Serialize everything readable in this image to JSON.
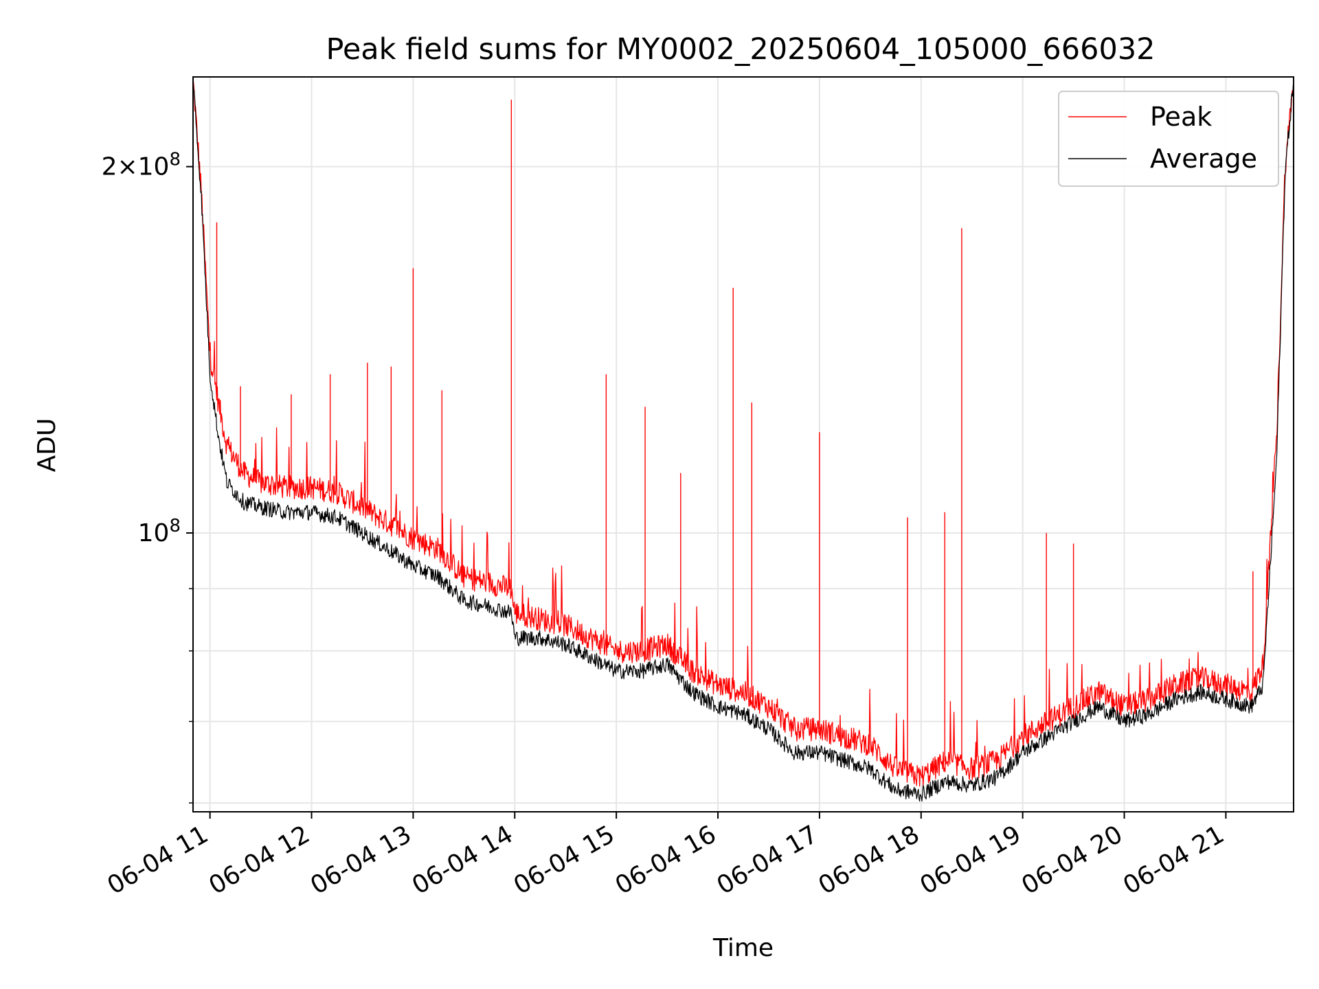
{
  "chart_data": {
    "type": "line",
    "title": "Peak field sums for MY0002_20250604_105000_666032",
    "xlabel": "Time",
    "ylabel": "ADU",
    "yscale": "log",
    "ylim": [
      59000000,
      237000000
    ],
    "xlim": [
      "2025-06-04 10:50",
      "2025-06-04 21:40"
    ],
    "x_ticks": [
      "06-04 11",
      "06-04 12",
      "06-04 13",
      "06-04 14",
      "06-04 15",
      "06-04 16",
      "06-04 17",
      "06-04 18",
      "06-04 19",
      "06-04 20",
      "06-04 21"
    ],
    "y_ticks": [
      {
        "value": 100000000,
        "label": "10^8"
      },
      {
        "value": 200000000,
        "label": "2×10^8"
      }
    ],
    "y_minor_ticks": [
      60000000,
      70000000,
      80000000,
      90000000
    ],
    "grid": true,
    "legend_position": "top-right",
    "series": [
      {
        "name": "Peak",
        "color": "#ff0000",
        "points": [
          [
            "2025-06-04 10:50",
            236000000
          ],
          [
            "2025-06-04 10:55",
            190000000
          ],
          [
            "2025-06-04 11:00",
            140000000
          ],
          [
            "2025-06-04 11:05",
            128000000
          ],
          [
            "2025-06-04 11:10",
            118000000
          ],
          [
            "2025-06-04 11:20",
            112000000
          ],
          [
            "2025-06-04 11:30",
            110000000
          ],
          [
            "2025-06-04 11:45",
            109000000
          ],
          [
            "2025-06-04 12:00",
            109000000
          ],
          [
            "2025-06-04 12:15",
            108000000
          ],
          [
            "2025-06-04 12:30",
            105000000
          ],
          [
            "2025-06-04 12:45",
            102000000
          ],
          [
            "2025-06-04 13:00",
            99000000
          ],
          [
            "2025-06-04 13:15",
            97000000
          ],
          [
            "2025-06-04 13:30",
            92000000
          ],
          [
            "2025-06-04 13:45",
            91000000
          ],
          [
            "2025-06-04 13:58",
            90000000
          ],
          [
            "2025-06-04 14:00",
            86000000
          ],
          [
            "2025-06-04 14:15",
            85000000
          ],
          [
            "2025-06-04 14:30",
            84000000
          ],
          [
            "2025-06-04 14:45",
            82000000
          ],
          [
            "2025-06-04 15:00",
            80000000
          ],
          [
            "2025-06-04 15:15",
            80000000
          ],
          [
            "2025-06-04 15:30",
            81000000
          ],
          [
            "2025-06-04 15:45",
            77000000
          ],
          [
            "2025-06-04 16:00",
            75000000
          ],
          [
            "2025-06-04 16:15",
            74000000
          ],
          [
            "2025-06-04 16:30",
            72000000
          ],
          [
            "2025-06-04 16:45",
            69000000
          ],
          [
            "2025-06-04 17:00",
            69000000
          ],
          [
            "2025-06-04 17:15",
            68000000
          ],
          [
            "2025-06-04 17:30",
            67000000
          ],
          [
            "2025-06-04 17:45",
            64000000
          ],
          [
            "2025-06-04 18:00",
            63000000
          ],
          [
            "2025-06-04 18:15",
            65000000
          ],
          [
            "2025-06-04 18:30",
            64000000
          ],
          [
            "2025-06-04 18:45",
            65000000
          ],
          [
            "2025-06-04 19:00",
            68000000
          ],
          [
            "2025-06-04 19:15",
            70000000
          ],
          [
            "2025-06-04 19:30",
            72000000
          ],
          [
            "2025-06-04 19:45",
            74000000
          ],
          [
            "2025-06-04 20:00",
            72000000
          ],
          [
            "2025-06-04 20:15",
            73000000
          ],
          [
            "2025-06-04 20:30",
            75000000
          ],
          [
            "2025-06-04 20:45",
            76000000
          ],
          [
            "2025-06-04 21:00",
            75000000
          ],
          [
            "2025-06-04 21:15",
            74000000
          ],
          [
            "2025-06-04 21:22",
            78000000
          ],
          [
            "2025-06-04 21:30",
            120000000
          ],
          [
            "2025-06-04 21:35",
            200000000
          ],
          [
            "2025-06-04 21:40",
            236000000
          ]
        ],
        "spikes": [
          [
            "2025-06-04 11:04",
            180000000
          ],
          [
            "2025-06-04 11:18",
            132000000
          ],
          [
            "2025-06-04 11:48",
            130000000
          ],
          [
            "2025-06-04 12:11",
            135000000
          ],
          [
            "2025-06-04 12:33",
            138000000
          ],
          [
            "2025-06-04 12:47",
            137000000
          ],
          [
            "2025-06-04 13:00",
            165000000
          ],
          [
            "2025-06-04 13:17",
            131000000
          ],
          [
            "2025-06-04 13:58",
            227000000
          ],
          [
            "2025-06-04 14:54",
            135000000
          ],
          [
            "2025-06-04 15:17",
            127000000
          ],
          [
            "2025-06-04 15:38",
            112000000
          ],
          [
            "2025-06-04 16:09",
            159000000
          ],
          [
            "2025-06-04 16:20",
            128000000
          ],
          [
            "2025-06-04 17:00",
            121000000
          ],
          [
            "2025-06-04 17:52",
            103000000
          ],
          [
            "2025-06-04 18:14",
            104000000
          ],
          [
            "2025-06-04 18:24",
            178000000
          ],
          [
            "2025-06-04 19:14",
            100000000
          ],
          [
            "2025-06-04 19:30",
            98000000
          ],
          [
            "2025-06-04 21:16",
            93000000
          ]
        ]
      },
      {
        "name": "Average",
        "color": "#000000",
        "points": [
          [
            "2025-06-04 10:50",
            236000000
          ],
          [
            "2025-06-04 10:55",
            188000000
          ],
          [
            "2025-06-04 11:00",
            135000000
          ],
          [
            "2025-06-04 11:05",
            120000000
          ],
          [
            "2025-06-04 11:10",
            110000000
          ],
          [
            "2025-06-04 11:20",
            106000000
          ],
          [
            "2025-06-04 11:30",
            105000000
          ],
          [
            "2025-06-04 11:45",
            104000000
          ],
          [
            "2025-06-04 12:00",
            104000000
          ],
          [
            "2025-06-04 12:15",
            103000000
          ],
          [
            "2025-06-04 12:30",
            100000000
          ],
          [
            "2025-06-04 12:45",
            97000000
          ],
          [
            "2025-06-04 13:00",
            94000000
          ],
          [
            "2025-06-04 13:15",
            92000000
          ],
          [
            "2025-06-04 13:30",
            88000000
          ],
          [
            "2025-06-04 13:45",
            87000000
          ],
          [
            "2025-06-04 13:58",
            86000000
          ],
          [
            "2025-06-04 14:00",
            82000000
          ],
          [
            "2025-06-04 14:15",
            82000000
          ],
          [
            "2025-06-04 14:30",
            81000000
          ],
          [
            "2025-06-04 14:45",
            79000000
          ],
          [
            "2025-06-04 15:00",
            77000000
          ],
          [
            "2025-06-04 15:15",
            77000000
          ],
          [
            "2025-06-04 15:30",
            78000000
          ],
          [
            "2025-06-04 15:45",
            74000000
          ],
          [
            "2025-06-04 16:00",
            72000000
          ],
          [
            "2025-06-04 16:15",
            71000000
          ],
          [
            "2025-06-04 16:30",
            69000000
          ],
          [
            "2025-06-04 16:45",
            66000000
          ],
          [
            "2025-06-04 17:00",
            66000000
          ],
          [
            "2025-06-04 17:15",
            65000000
          ],
          [
            "2025-06-04 17:30",
            64000000
          ],
          [
            "2025-06-04 17:45",
            61500000
          ],
          [
            "2025-06-04 18:00",
            61000000
          ],
          [
            "2025-06-04 18:15",
            62500000
          ],
          [
            "2025-06-04 18:30",
            62000000
          ],
          [
            "2025-06-04 18:45",
            63000000
          ],
          [
            "2025-06-04 19:00",
            66000000
          ],
          [
            "2025-06-04 19:15",
            68000000
          ],
          [
            "2025-06-04 19:30",
            70000000
          ],
          [
            "2025-06-04 19:45",
            72000000
          ],
          [
            "2025-06-04 20:00",
            70000000
          ],
          [
            "2025-06-04 20:15",
            71000000
          ],
          [
            "2025-06-04 20:30",
            73000000
          ],
          [
            "2025-06-04 20:45",
            74000000
          ],
          [
            "2025-06-04 21:00",
            73000000
          ],
          [
            "2025-06-04 21:15",
            72000000
          ],
          [
            "2025-06-04 21:22",
            75000000
          ],
          [
            "2025-06-04 21:30",
            115000000
          ],
          [
            "2025-06-04 21:35",
            198000000
          ],
          [
            "2025-06-04 21:40",
            236000000
          ]
        ]
      }
    ]
  }
}
